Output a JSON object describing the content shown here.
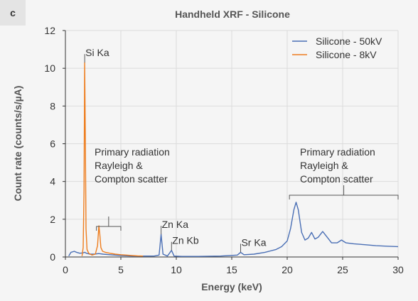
{
  "panel_label": "c",
  "colors": {
    "series_50kV": "#4a6fb5",
    "series_8kV": "#ee7d1e",
    "grid": "#dcdcdc",
    "axis": "#333333"
  },
  "chart_data": {
    "type": "line",
    "title": "Handheld XRF - Silicone",
    "xlabel": "Energy (keV)",
    "ylabel": "Count rate (counts/s/µA)",
    "xlim": [
      0,
      30
    ],
    "ylim": [
      0,
      12
    ],
    "xticks": [
      "0",
      "5",
      "10",
      "15",
      "20",
      "25",
      "30"
    ],
    "yticks": [
      "0",
      "2",
      "4",
      "6",
      "8",
      "10",
      "12"
    ],
    "grid": true,
    "legend_position": "top-right",
    "series": [
      {
        "name": "Silicone - 50kV",
        "color": "#4a6fb5",
        "x": [
          0.3,
          0.5,
          0.8,
          1.0,
          1.3,
          1.6,
          1.74,
          1.9,
          2.2,
          2.6,
          3.0,
          3.4,
          4.0,
          5.0,
          6.0,
          7.0,
          8.0,
          8.45,
          8.63,
          8.8,
          9.2,
          9.57,
          9.8,
          10.5,
          12.0,
          14.0,
          15.5,
          15.8,
          16.1,
          17.0,
          18.0,
          19.0,
          19.5,
          20.0,
          20.3,
          20.6,
          20.8,
          21.0,
          21.3,
          21.6,
          21.9,
          22.2,
          22.5,
          22.8,
          23.2,
          23.6,
          24.0,
          24.5,
          24.9,
          25.3,
          26.0,
          27.0,
          28.0,
          29.0,
          30.0
        ],
        "y": [
          0.05,
          0.25,
          0.3,
          0.25,
          0.2,
          0.22,
          0.25,
          0.2,
          0.15,
          0.15,
          0.18,
          0.15,
          0.12,
          0.08,
          0.05,
          0.05,
          0.05,
          0.1,
          1.2,
          0.15,
          0.05,
          0.35,
          0.05,
          0.03,
          0.03,
          0.05,
          0.1,
          0.25,
          0.12,
          0.15,
          0.25,
          0.4,
          0.55,
          0.85,
          1.5,
          2.5,
          2.9,
          2.5,
          1.3,
          0.9,
          1.0,
          1.3,
          0.95,
          1.05,
          1.35,
          1.05,
          0.75,
          0.75,
          0.9,
          0.75,
          0.7,
          0.65,
          0.6,
          0.57,
          0.55
        ]
      },
      {
        "name": "Silicone - 8kV",
        "color": "#ee7d1e",
        "x": [
          1.5,
          1.6,
          1.68,
          1.74,
          1.8,
          1.86,
          1.95,
          2.1,
          2.4,
          2.7,
          2.9,
          3.02,
          3.1,
          3.2,
          3.35,
          3.6,
          4.0,
          4.5,
          5.0,
          5.5,
          6.0,
          6.5,
          7.0
        ],
        "y": [
          0.05,
          0.5,
          3.5,
          10.3,
          6.0,
          1.5,
          0.4,
          0.2,
          0.1,
          0.15,
          0.6,
          1.65,
          1.2,
          0.5,
          0.3,
          0.25,
          0.2,
          0.15,
          0.12,
          0.1,
          0.08,
          0.06,
          0.05
        ]
      }
    ],
    "annotations": [
      {
        "id": "si-ka",
        "text": "Si Ka",
        "x": 1.74,
        "y": 10.3
      },
      {
        "id": "zn-ka",
        "text": "Zn Ka",
        "x": 8.63,
        "y": 1.2
      },
      {
        "id": "zn-kb",
        "text": "Zn Kb",
        "x": 9.57,
        "y": 0.35
      },
      {
        "id": "sr-ka",
        "text": "Sr Ka",
        "x": 15.8,
        "y": 0.25
      }
    ],
    "brackets": [
      {
        "id": "left",
        "x0": 2.8,
        "x1": 5.0,
        "lines": [
          "Primary radiation",
          "Rayleigh &",
          "Compton scatter"
        ]
      },
      {
        "id": "right",
        "x0": 20.2,
        "x1": 30.0,
        "lines": [
          "Primary radiation",
          "Rayleigh &",
          "Compton scatter"
        ]
      }
    ]
  }
}
